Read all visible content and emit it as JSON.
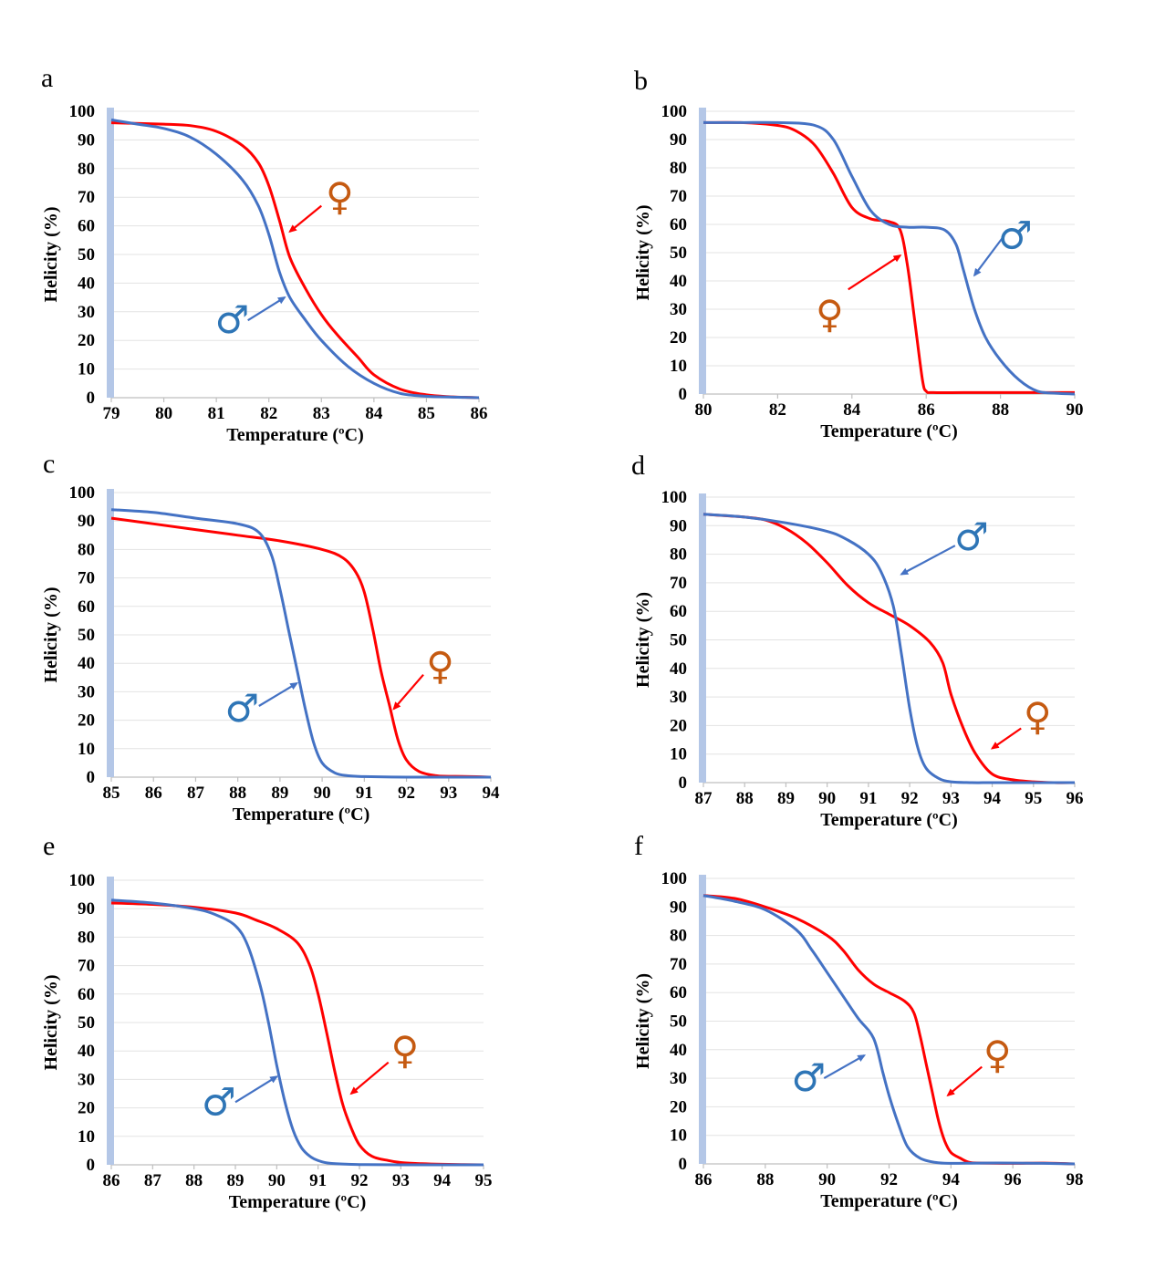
{
  "colors": {
    "male": "#4472c4",
    "female": "#ff0000",
    "female_symbol": "#c55a11",
    "male_symbol": "#2e75b6",
    "axis_bar": "#b4c7e7"
  },
  "symbols": {
    "male": "♂",
    "female": "♀"
  },
  "chart_data": [
    {
      "type": "line",
      "panel": "a",
      "xlabel": "Temperature (ºC)",
      "ylabel": "Helicity (%)",
      "xlim": [
        79,
        86
      ],
      "ylim": [
        0,
        100
      ],
      "xticks": [
        79,
        80,
        81,
        82,
        83,
        84,
        85,
        86
      ],
      "yticks": [
        0,
        10,
        20,
        30,
        40,
        50,
        60,
        70,
        80,
        90,
        100
      ],
      "series": [
        {
          "key": "female",
          "x": [
            79,
            80,
            80.5,
            81,
            81.5,
            81.8,
            82,
            82.2,
            82.4,
            82.7,
            83,
            83.3,
            83.7,
            84,
            84.5,
            85,
            85.5,
            86
          ],
          "y": [
            96,
            95.5,
            95,
            93,
            88,
            82,
            74,
            62,
            49,
            38,
            29,
            22,
            14,
            8,
            3,
            1,
            0.3,
            0
          ]
        },
        {
          "key": "male",
          "x": [
            79,
            79.5,
            80,
            80.5,
            81,
            81.5,
            81.8,
            82,
            82.2,
            82.4,
            82.7,
            83,
            83.5,
            84,
            84.5,
            85,
            85.5,
            86
          ],
          "y": [
            97,
            95.5,
            94,
            91,
            85,
            76,
            67,
            57,
            44,
            35,
            27,
            20,
            11,
            5,
            1.5,
            0.5,
            0.2,
            0
          ]
        }
      ]
    },
    {
      "type": "line",
      "panel": "b",
      "xlabel": "Temperature (ºC)",
      "ylabel": "Helicity (%)",
      "xlim": [
        80,
        90
      ],
      "ylim": [
        0,
        100
      ],
      "xticks": [
        80,
        82,
        84,
        86,
        88,
        90
      ],
      "yticks": [
        0,
        10,
        20,
        30,
        40,
        50,
        60,
        70,
        80,
        90,
        100
      ],
      "series": [
        {
          "key": "female",
          "x": [
            80,
            81,
            82,
            82.5,
            83,
            83.5,
            84,
            84.5,
            85,
            85.3,
            85.5,
            85.7,
            85.9,
            86,
            86.2,
            87,
            88,
            89,
            90
          ],
          "y": [
            96,
            96,
            95,
            93,
            88,
            78,
            66,
            62,
            61,
            58,
            45,
            25,
            5,
            1,
            0.5,
            0.5,
            0.5,
            0.5,
            0.5
          ]
        },
        {
          "key": "male",
          "x": [
            80,
            81,
            82,
            83,
            83.5,
            84,
            84.5,
            85,
            85.5,
            86,
            86.5,
            86.8,
            87,
            87.3,
            87.6,
            88,
            88.5,
            89,
            89.5,
            90
          ],
          "y": [
            96,
            96,
            96,
            95,
            90,
            77,
            65,
            60,
            59,
            59,
            58,
            53,
            44,
            30,
            20,
            12,
            5,
            1,
            0.3,
            0
          ]
        }
      ]
    },
    {
      "type": "line",
      "panel": "c",
      "xlabel": "Temperature (ºC)",
      "ylabel": "Helicity (%)",
      "xlim": [
        85,
        94
      ],
      "ylim": [
        0,
        100
      ],
      "xticks": [
        85,
        86,
        87,
        88,
        89,
        90,
        91,
        92,
        93,
        94
      ],
      "yticks": [
        0,
        10,
        20,
        30,
        40,
        50,
        60,
        70,
        80,
        90,
        100
      ],
      "series": [
        {
          "key": "female",
          "x": [
            85,
            86,
            87,
            88,
            89,
            90,
            90.5,
            90.8,
            91,
            91.2,
            91.4,
            91.6,
            91.8,
            92,
            92.3,
            92.7,
            93,
            93.5,
            94
          ],
          "y": [
            91,
            89,
            87,
            85,
            83,
            80,
            77,
            72,
            65,
            52,
            37,
            25,
            13,
            6,
            2,
            0.5,
            0.3,
            0.2,
            0
          ]
        },
        {
          "key": "male",
          "x": [
            85,
            86,
            87,
            88,
            88.5,
            88.8,
            89,
            89.2,
            89.4,
            89.6,
            89.8,
            90,
            90.3,
            90.6,
            91,
            92,
            93,
            94
          ],
          "y": [
            94,
            93,
            91,
            89,
            86,
            78,
            66,
            52,
            38,
            24,
            12,
            5,
            1.5,
            0.5,
            0.2,
            0,
            0,
            0
          ]
        }
      ]
    },
    {
      "type": "line",
      "panel": "d",
      "xlabel": "Temperature (ºC)",
      "ylabel": "Helicity (%)",
      "xlim": [
        87,
        96
      ],
      "ylim": [
        0,
        100
      ],
      "xticks": [
        87,
        88,
        89,
        90,
        91,
        92,
        93,
        94,
        95,
        96
      ],
      "yticks": [
        0,
        10,
        20,
        30,
        40,
        50,
        60,
        70,
        80,
        90,
        100
      ],
      "series": [
        {
          "key": "female",
          "x": [
            87,
            88,
            88.5,
            89,
            89.5,
            90,
            90.5,
            91,
            91.5,
            92,
            92.5,
            92.8,
            93,
            93.3,
            93.6,
            94,
            94.5,
            95,
            95.5,
            96
          ],
          "y": [
            94,
            93,
            92,
            89,
            84,
            77,
            69,
            63,
            59,
            55,
            49,
            42,
            31,
            19,
            10,
            3,
            1,
            0.3,
            0,
            0
          ]
        },
        {
          "key": "male",
          "x": [
            87,
            88,
            89,
            90,
            90.5,
            91,
            91.3,
            91.6,
            91.8,
            92,
            92.2,
            92.4,
            92.7,
            93,
            93.5,
            94,
            95,
            96
          ],
          "y": [
            94,
            93,
            91,
            88,
            85,
            80,
            74,
            62,
            45,
            26,
            12,
            5,
            1.5,
            0.3,
            0,
            0,
            0,
            0
          ]
        }
      ]
    },
    {
      "type": "line",
      "panel": "e",
      "xlabel": "Temperature (ºC)",
      "ylabel": "Helicity (%)",
      "xlim": [
        86,
        95
      ],
      "ylim": [
        0,
        100
      ],
      "xticks": [
        86,
        87,
        88,
        89,
        90,
        91,
        92,
        93,
        94,
        95
      ],
      "yticks": [
        0,
        10,
        20,
        30,
        40,
        50,
        60,
        70,
        80,
        90,
        100
      ],
      "series": [
        {
          "key": "female",
          "x": [
            86,
            87,
            88,
            89,
            89.5,
            90,
            90.5,
            90.8,
            91,
            91.2,
            91.4,
            91.6,
            91.8,
            92,
            92.3,
            92.7,
            93,
            93.5,
            94,
            95
          ],
          "y": [
            92,
            91.5,
            90.5,
            88.5,
            86,
            83,
            78,
            70,
            60,
            47,
            33,
            21,
            13,
            7,
            3,
            1.5,
            0.8,
            0.4,
            0.2,
            0
          ]
        },
        {
          "key": "male",
          "x": [
            86,
            87,
            88,
            88.5,
            89,
            89.3,
            89.6,
            89.8,
            90,
            90.2,
            90.4,
            90.6,
            90.8,
            91,
            91.3,
            92,
            93,
            95
          ],
          "y": [
            93,
            92,
            90,
            88,
            84,
            77,
            63,
            50,
            35,
            22,
            12,
            6,
            3,
            1.5,
            0.5,
            0.1,
            0,
            0
          ]
        }
      ]
    },
    {
      "type": "line",
      "panel": "f",
      "xlabel": "Temperature (ºC)",
      "ylabel": "Helicity (%)",
      "xlim": [
        86,
        98
      ],
      "ylim": [
        0,
        100
      ],
      "xticks": [
        86,
        88,
        90,
        92,
        94,
        96,
        98
      ],
      "yticks": [
        0,
        10,
        20,
        30,
        40,
        50,
        60,
        70,
        80,
        90,
        100
      ],
      "series": [
        {
          "key": "female",
          "x": [
            86,
            87,
            88,
            89,
            90,
            90.5,
            91,
            91.5,
            92,
            92.5,
            92.8,
            93,
            93.2,
            93.4,
            93.6,
            93.8,
            94,
            94.3,
            94.6,
            95,
            96,
            97,
            98
          ],
          "y": [
            94,
            93,
            90,
            86,
            80,
            75,
            68,
            63,
            60,
            57,
            53,
            45,
            35,
            25,
            15,
            8,
            4,
            2,
            0.5,
            0.3,
            0.2,
            0.3,
            0
          ]
        },
        {
          "key": "male",
          "x": [
            86,
            87,
            88,
            89,
            89.5,
            90,
            90.5,
            91,
            91.5,
            91.8,
            92,
            92.3,
            92.6,
            93,
            93.5,
            94,
            95,
            96,
            97,
            98
          ],
          "y": [
            94,
            92,
            89,
            82,
            75,
            67,
            59,
            51,
            44,
            32,
            24,
            14,
            6,
            2,
            0.5,
            0.2,
            0.3,
            0.3,
            0.2,
            0
          ]
        }
      ]
    }
  ],
  "annotations": [
    {
      "panel": "a",
      "items": [
        {
          "key": "female",
          "symbol_at": [
            83.35,
            70
          ],
          "arrow_from": [
            83.0,
            67
          ],
          "arrow_to": [
            82.4,
            58
          ]
        },
        {
          "key": "male",
          "symbol_at": [
            81.3,
            27
          ],
          "arrow_from": [
            81.6,
            27
          ],
          "arrow_to": [
            82.3,
            35
          ]
        }
      ]
    },
    {
      "panel": "b",
      "items": [
        {
          "key": "female",
          "symbol_at": [
            83.4,
            28
          ],
          "arrow_from": [
            83.9,
            37
          ],
          "arrow_to": [
            85.3,
            49
          ]
        },
        {
          "key": "male",
          "symbol_at": [
            88.4,
            56
          ],
          "arrow_from": [
            88.1,
            56
          ],
          "arrow_to": [
            87.3,
            42
          ]
        }
      ]
    },
    {
      "panel": "c",
      "items": [
        {
          "key": "female",
          "symbol_at": [
            92.8,
            39
          ],
          "arrow_from": [
            92.4,
            36
          ],
          "arrow_to": [
            91.7,
            24
          ]
        },
        {
          "key": "male",
          "symbol_at": [
            88.1,
            24
          ],
          "arrow_from": [
            88.5,
            25
          ],
          "arrow_to": [
            89.4,
            33
          ]
        }
      ]
    },
    {
      "panel": "d",
      "items": [
        {
          "key": "female",
          "symbol_at": [
            95.1,
            23
          ],
          "arrow_from": [
            94.7,
            19
          ],
          "arrow_to": [
            94.0,
            12
          ]
        },
        {
          "key": "male",
          "symbol_at": [
            93.5,
            86
          ],
          "arrow_from": [
            93.1,
            83
          ],
          "arrow_to": [
            91.8,
            73
          ]
        }
      ]
    },
    {
      "panel": "e",
      "items": [
        {
          "key": "female",
          "symbol_at": [
            93.1,
            40
          ],
          "arrow_from": [
            92.7,
            36
          ],
          "arrow_to": [
            91.8,
            25
          ]
        },
        {
          "key": "male",
          "symbol_at": [
            88.6,
            22
          ],
          "arrow_from": [
            89.0,
            22
          ],
          "arrow_to": [
            90.0,
            31
          ]
        }
      ]
    },
    {
      "panel": "f",
      "items": [
        {
          "key": "female",
          "symbol_at": [
            95.5,
            38
          ],
          "arrow_from": [
            95.0,
            34
          ],
          "arrow_to": [
            93.9,
            24
          ]
        },
        {
          "key": "male",
          "symbol_at": [
            89.4,
            30
          ],
          "arrow_from": [
            89.9,
            30
          ],
          "arrow_to": [
            91.2,
            38
          ]
        }
      ]
    }
  ]
}
